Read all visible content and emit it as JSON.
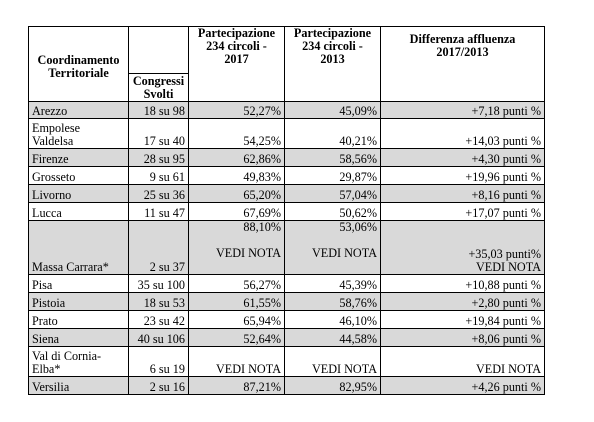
{
  "table": {
    "headers": {
      "region": [
        "Coordinamento",
        "Territoriale"
      ],
      "congressi": [
        "Congressi",
        "Svolti"
      ],
      "p2017": [
        "Partecipazione",
        "234 circoli -",
        "2017"
      ],
      "p2013": [
        "Partecipazione",
        "234 circoli -",
        "2013"
      ],
      "diff": [
        "Differenza affluenza",
        "2017/2013"
      ]
    },
    "rows": [
      {
        "region": "Arezzo",
        "congressi": "18 su 98",
        "p2017": "52,27%",
        "p2013": "45,09%",
        "diff": "+7,18 punti %"
      },
      {
        "region_lines": [
          "Empolese",
          "Valdelsa"
        ],
        "congressi": "17 su 40",
        "p2017": "54,25%",
        "p2013": "40,21%",
        "diff": "+14,03 punti %"
      },
      {
        "region": "Firenze",
        "congressi": "28 su 95",
        "p2017": "62,86%",
        "p2013": "58,56%",
        "diff": "+4,30 punti %"
      },
      {
        "region": "Grosseto",
        "congressi": "9 su 61",
        "p2017": "49,83%",
        "p2013": "29,87%",
        "diff": "+19,96 punti %"
      },
      {
        "region": "Livorno",
        "congressi": "25 su 36",
        "p2017": "65,20%",
        "p2013": "57,04%",
        "diff": "+8,16 punti %"
      },
      {
        "region": "Lucca",
        "congressi": "11 su 47",
        "p2017": "67,69%",
        "p2013": "50,62%",
        "diff": "+17,07 punti %"
      },
      {
        "region": "Massa Carrara*",
        "congressi": "2 su 37",
        "p2017_lines": [
          "88,10%",
          "VEDI NOTA"
        ],
        "p2013_lines": [
          "53,06%",
          "VEDI NOTA"
        ],
        "diff_lines": [
          "+35,03 punti%",
          "VEDI NOTA"
        ]
      },
      {
        "region": "Pisa",
        "congressi": "35 su 100",
        "p2017": "56,27%",
        "p2013": "45,39%",
        "diff": "+10,88 punti %"
      },
      {
        "region": "Pistoia",
        "congressi": "18 su 53",
        "p2017": "61,55%",
        "p2013": "58,76%",
        "diff": "+2,80 punti %"
      },
      {
        "region": "Prato",
        "congressi": "23 su 42",
        "p2017": "65,94%",
        "p2013": "46,10%",
        "diff": "+19,84 punti %"
      },
      {
        "region": "Siena",
        "congressi": "40 su 106",
        "p2017": "52,64%",
        "p2013": "44,58%",
        "diff": "+8,06 punti %"
      },
      {
        "region_lines": [
          "Val di Cornia-",
          "Elba*"
        ],
        "congressi": "6 su 19",
        "p2017": "VEDI NOTA",
        "p2013": "VEDI NOTA",
        "diff": "VEDI NOTA"
      },
      {
        "region": "Versilia",
        "congressi": "2 su 16",
        "p2017": "87,21%",
        "p2013": "82,95%",
        "diff": "+4,26 punti %"
      }
    ],
    "row_shade_color": "#d9d9d9"
  }
}
